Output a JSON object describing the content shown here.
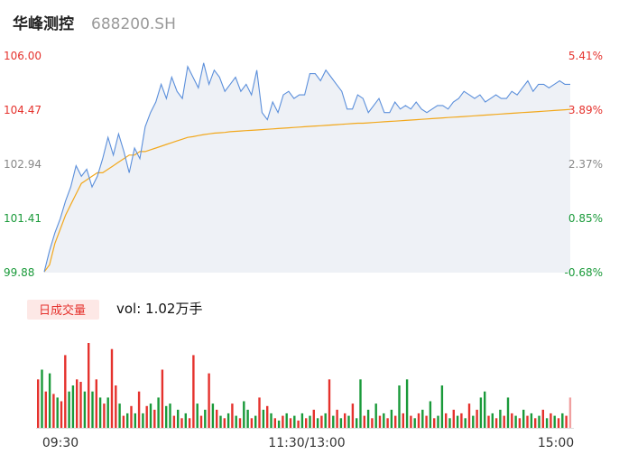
{
  "header": {
    "name": "华峰测控",
    "code": "688200.SH"
  },
  "volume_panel": {
    "badge": "日成交量",
    "vol_label": "vol: 1.02万手"
  },
  "colors": {
    "up": "#e5322d",
    "down": "#1a9a3a",
    "price_line": "#5b8fdb",
    "avg_line": "#f2a81c",
    "area_fill": "#eef1f6",
    "badge_bg": "#fde8e6"
  },
  "chart_data": {
    "type": "line",
    "title": "",
    "xlabel": "",
    "ylabel": "",
    "x_ticks": [
      "09:30",
      "11:30/13:00",
      "15:00"
    ],
    "price_ticks": [
      "106.00",
      "104.47",
      "102.94",
      "101.41",
      "99.88"
    ],
    "pct_ticks": [
      "5.41%",
      "3.89%",
      "2.37%",
      "0.85%",
      "-0.68%"
    ],
    "ylim": [
      99.88,
      106.0
    ],
    "series": [
      {
        "key": "price",
        "values": [
          99.9,
          100.5,
          101.0,
          101.4,
          101.9,
          102.3,
          102.9,
          102.6,
          102.8,
          102.3,
          102.6,
          103.1,
          103.7,
          103.2,
          103.8,
          103.3,
          102.7,
          103.4,
          103.1,
          104.0,
          104.4,
          104.7,
          105.2,
          104.8,
          105.4,
          105.0,
          104.8,
          105.7,
          105.4,
          105.1,
          105.8,
          105.2,
          105.6,
          105.4,
          105.0,
          105.2,
          105.4,
          105.0,
          105.2,
          104.9,
          105.6,
          104.4,
          104.2,
          104.7,
          104.4,
          104.9,
          105.0,
          104.8,
          104.9,
          104.9,
          105.5,
          105.5,
          105.3,
          105.6,
          105.4,
          105.2,
          105.0,
          104.5,
          104.5,
          104.9,
          104.8,
          104.4,
          104.6,
          104.8,
          104.4,
          104.4,
          104.7,
          104.5,
          104.6,
          104.5,
          104.7,
          104.5,
          104.4,
          104.5,
          104.6,
          104.6,
          104.5,
          104.7,
          104.8,
          105.0,
          104.9,
          104.8,
          104.9,
          104.7,
          104.8,
          104.9,
          104.8,
          104.8,
          105.0,
          104.9,
          105.1,
          105.3,
          105.0,
          105.2,
          105.2,
          105.1,
          105.2,
          105.3,
          105.2,
          105.2
        ],
        "style": "blue line with light area fill"
      },
      {
        "key": "average",
        "values": [
          99.9,
          100.1,
          100.7,
          101.1,
          101.5,
          101.8,
          102.1,
          102.4,
          102.5,
          102.6,
          102.7,
          102.7,
          102.8,
          102.9,
          103.0,
          103.1,
          103.2,
          103.2,
          103.3,
          103.3,
          103.35,
          103.4,
          103.45,
          103.5,
          103.55,
          103.6,
          103.65,
          103.7,
          103.72,
          103.75,
          103.78,
          103.8,
          103.82,
          103.83,
          103.84,
          103.86,
          103.87,
          103.88,
          103.89,
          103.9,
          103.91,
          103.92,
          103.93,
          103.94,
          103.95,
          103.96,
          103.97,
          103.98,
          103.99,
          104.0,
          104.01,
          104.02,
          104.03,
          104.04,
          104.05,
          104.06,
          104.07,
          104.08,
          104.09,
          104.1,
          104.1,
          104.11,
          104.12,
          104.13,
          104.14,
          104.15,
          104.16,
          104.17,
          104.18,
          104.19,
          104.2,
          104.21,
          104.22,
          104.23,
          104.24,
          104.25,
          104.26,
          104.27,
          104.28,
          104.29,
          104.3,
          104.31,
          104.32,
          104.33,
          104.34,
          104.35,
          104.36,
          104.37,
          104.38,
          104.39,
          104.4,
          104.41,
          104.42,
          104.43,
          104.44,
          104.45,
          104.46,
          104.47,
          104.48,
          104.49
        ],
        "style": "orange line"
      }
    ],
    "volume": {
      "values": [
        40,
        48,
        30,
        45,
        28,
        25,
        22,
        60,
        30,
        35,
        40,
        38,
        30,
        70,
        30,
        40,
        25,
        20,
        25,
        65,
        35,
        20,
        10,
        12,
        18,
        12,
        30,
        12,
        18,
        20,
        15,
        25,
        48,
        18,
        20,
        10,
        15,
        8,
        12,
        8,
        60,
        20,
        10,
        15,
        45,
        20,
        15,
        10,
        8,
        12,
        20,
        10,
        8,
        22,
        15,
        8,
        10,
        25,
        15,
        18,
        12,
        8,
        6,
        10,
        12,
        8,
        10,
        6,
        12,
        8,
        10,
        15,
        8,
        10,
        12,
        40,
        10,
        15,
        8,
        12,
        10,
        20,
        8,
        40,
        10,
        15,
        8,
        20,
        10,
        12,
        8,
        15,
        10,
        35,
        12,
        40,
        10,
        8,
        12,
        15,
        10,
        22,
        8,
        10,
        35,
        12,
        8,
        15,
        10,
        12,
        8,
        20,
        10,
        15,
        25,
        30,
        10,
        12,
        8,
        15,
        10,
        25,
        12,
        10,
        8,
        15,
        10,
        12,
        8,
        10,
        15,
        8,
        12,
        10,
        8,
        12,
        10,
        25
      ],
      "directions": [
        "up",
        "down",
        "up",
        "down",
        "up",
        "down",
        "up",
        "up",
        "down",
        "down",
        "up",
        "up",
        "down",
        "up",
        "down",
        "up",
        "down",
        "up",
        "down",
        "up",
        "up",
        "down",
        "up",
        "down",
        "up",
        "down",
        "up",
        "down",
        "up",
        "down",
        "up",
        "down",
        "up",
        "down",
        "down",
        "up",
        "down",
        "up",
        "down",
        "up",
        "up",
        "down",
        "up",
        "down",
        "up",
        "down",
        "up",
        "down",
        "up",
        "down",
        "up",
        "down",
        "up",
        "down",
        "down",
        "up",
        "down",
        "up",
        "down",
        "up",
        "down",
        "up",
        "down",
        "up",
        "down",
        "up",
        "down",
        "up",
        "down",
        "up",
        "down",
        "up",
        "down",
        "up",
        "down",
        "up",
        "down",
        "up",
        "down",
        "up",
        "down",
        "up",
        "down",
        "down",
        "up",
        "down",
        "up",
        "down",
        "up",
        "down",
        "up",
        "down",
        "up",
        "down",
        "up",
        "down",
        "up",
        "down",
        "up",
        "down",
        "up",
        "down",
        "up",
        "down",
        "down",
        "up",
        "down",
        "up",
        "down",
        "up",
        "down",
        "up",
        "down",
        "up",
        "down",
        "down",
        "up",
        "down",
        "up",
        "down",
        "up",
        "down",
        "up",
        "down",
        "up",
        "down",
        "up",
        "down",
        "up",
        "down",
        "up",
        "down",
        "up",
        "down",
        "up",
        "down",
        "up",
        "flat"
      ]
    }
  }
}
